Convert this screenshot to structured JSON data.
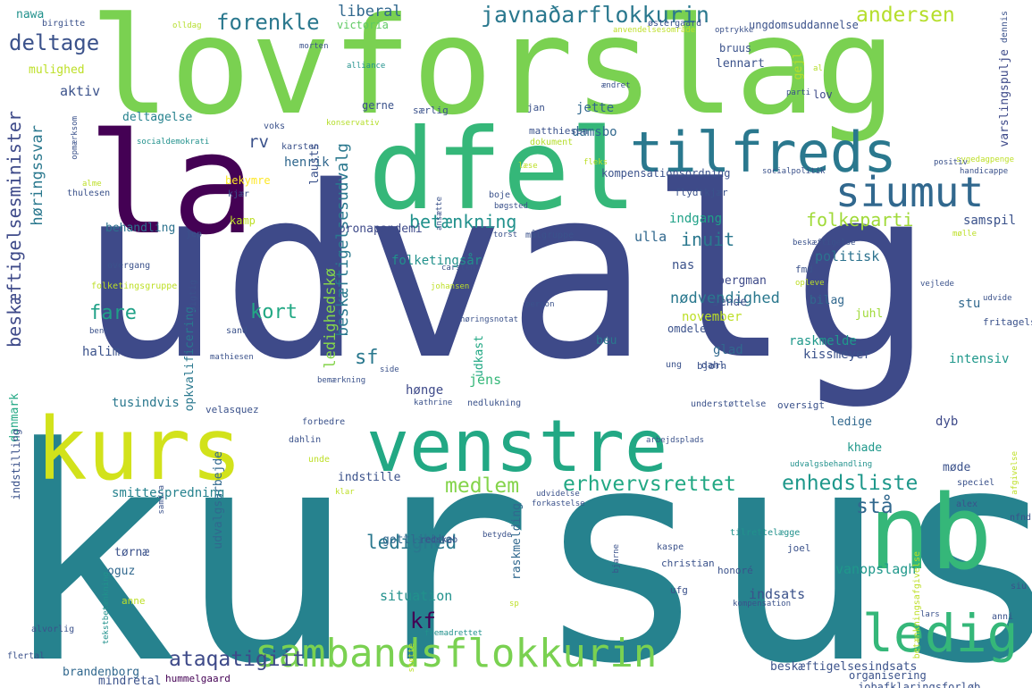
{
  "words": [
    {
      "text": "udvalg",
      "color": "#3e4a89"
    },
    {
      "text": "kursus",
      "color": "#26828e"
    },
    {
      "text": "lovforslag",
      "color": "#7ad151"
    },
    {
      "text": "dfel",
      "color": "#35b779"
    },
    {
      "text": "la",
      "color": "#440154"
    },
    {
      "text": "kurs",
      "color": "#d2e21b"
    },
    {
      "text": "venstre",
      "color": "#22a884"
    },
    {
      "text": "nb",
      "color": "#35b779"
    },
    {
      "text": "tilfreds",
      "color": "#2a788e"
    },
    {
      "text": "siumut",
      "color": "#31688e"
    },
    {
      "text": "ledig",
      "color": "#35b779"
    },
    {
      "text": "sambandsflokkurin",
      "color": "#7ad151"
    },
    {
      "text": "javnaðarflokkurin",
      "color": "#2a788e"
    },
    {
      "text": "forenkle",
      "color": "#2a788e"
    },
    {
      "text": "deltage",
      "color": "#3b528b"
    },
    {
      "text": "andersen",
      "color": "#b5de2b"
    },
    {
      "text": "liberal",
      "color": "#31688e"
    },
    {
      "text": "victoria",
      "color": "#5ec962"
    },
    {
      "text": "nawa",
      "color": "#21918c"
    },
    {
      "text": "mulighed",
      "color": "#bddf26"
    },
    {
      "text": "aktiv",
      "color": "#3b528b"
    },
    {
      "text": "beskæftigelsesminister",
      "color": "#3e4a89"
    },
    {
      "text": "høringssvar",
      "color": "#2a788e"
    },
    {
      "text": "beskæftigelsesudvalg",
      "color": "#2a788e"
    },
    {
      "text": "rv",
      "color": "#3b528b"
    },
    {
      "text": "henrik",
      "color": "#31688e"
    },
    {
      "text": "lausts",
      "color": "#3b528b"
    },
    {
      "text": "bekymre",
      "color": "#fde725"
    },
    {
      "text": "kamp",
      "color": "#bddf26"
    },
    {
      "text": "behandling",
      "color": "#2c728e"
    },
    {
      "text": "betænkning",
      "color": "#21918c"
    },
    {
      "text": "folkeparti",
      "color": "#a0da39"
    },
    {
      "text": "inuit",
      "color": "#2a788e"
    },
    {
      "text": "nas",
      "color": "#3b528b"
    },
    {
      "text": "ledighedskø",
      "color": "#84d44b"
    },
    {
      "text": "kort",
      "color": "#22a884"
    },
    {
      "text": "fare",
      "color": "#1fa187"
    },
    {
      "text": "sf",
      "color": "#2a788e"
    },
    {
      "text": "medlem",
      "color": "#84d44b"
    },
    {
      "text": "erhvervsrettet",
      "color": "#22a884"
    },
    {
      "text": "enhedsliste",
      "color": "#1f988b"
    },
    {
      "text": "stå",
      "color": "#31688e"
    },
    {
      "text": "ledighed",
      "color": "#2a788e"
    },
    {
      "text": "kf",
      "color": "#440154"
    },
    {
      "text": "ataqatigiit",
      "color": "#3e4a89"
    },
    {
      "text": "deltagelse",
      "color": "#26828e"
    },
    {
      "text": "jette",
      "color": "#31688e"
    },
    {
      "text": "damsbo",
      "color": "#31688e"
    },
    {
      "text": "gerne",
      "color": "#3b528b"
    },
    {
      "text": "gejl",
      "color": "#b5de2b"
    },
    {
      "text": "lov",
      "color": "#3e4a89"
    },
    {
      "text": "varslingspulje",
      "color": "#3e4a89"
    },
    {
      "text": "samspil",
      "color": "#3b528b"
    },
    {
      "text": "indgang",
      "color": "#1fa187"
    },
    {
      "text": "coronapandemi",
      "color": "#3e4a89"
    },
    {
      "text": "ulla",
      "color": "#31688e"
    },
    {
      "text": "politisk",
      "color": "#2c728e"
    },
    {
      "text": "bergman",
      "color": "#3e4a89"
    },
    {
      "text": "nødvendighed",
      "color": "#2a788e"
    },
    {
      "text": "sende",
      "color": "#3b528b"
    },
    {
      "text": "november",
      "color": "#bddf26"
    },
    {
      "text": "juhl",
      "color": "#a0da39"
    },
    {
      "text": "bilag",
      "color": "#31688e"
    },
    {
      "text": "stu",
      "color": "#31688e"
    },
    {
      "text": "raskmelde",
      "color": "#1f988b"
    },
    {
      "text": "kissmeyer",
      "color": "#3b528b"
    },
    {
      "text": "intensiv",
      "color": "#1f988b"
    },
    {
      "text": "glad",
      "color": "#31688e"
    },
    {
      "text": "beu",
      "color": "#2a788e"
    },
    {
      "text": "halim",
      "color": "#3b528b"
    },
    {
      "text": "opkvalificering",
      "color": "#2a788e"
    },
    {
      "text": "udkast",
      "color": "#22a884"
    },
    {
      "text": "jens",
      "color": "#35b779"
    },
    {
      "text": "hønge",
      "color": "#3e4a89"
    },
    {
      "text": "tusindvis",
      "color": "#2a788e"
    },
    {
      "text": "danmark",
      "color": "#22a884"
    },
    {
      "text": "indstilling",
      "color": "#3b528b"
    },
    {
      "text": "udvalgsarbejde",
      "color": "#31688e"
    },
    {
      "text": "indstille",
      "color": "#3b528b"
    },
    {
      "text": "smittespredning",
      "color": "#26828e"
    },
    {
      "text": "ledige",
      "color": "#31688e"
    },
    {
      "text": "dyb",
      "color": "#3e4a89"
    },
    {
      "text": "khade",
      "color": "#1f988b"
    },
    {
      "text": "møde",
      "color": "#3b528b"
    },
    {
      "text": "tørnæ",
      "color": "#3b528b"
    },
    {
      "text": "oguz",
      "color": "#31688e"
    },
    {
      "text": "gottliebbe",
      "color": "#31688e"
    },
    {
      "text": "raskmelding",
      "color": "#31688e"
    },
    {
      "text": "situation",
      "color": "#21918c"
    },
    {
      "text": "indsats",
      "color": "#3b528b"
    },
    {
      "text": "vanopslagh",
      "color": "#1f988b"
    },
    {
      "text": "beskæftigelsesindsats",
      "color": "#3b528b"
    },
    {
      "text": "brandenborg",
      "color": "#31688e"
    },
    {
      "text": "mindretal",
      "color": "#3b528b"
    },
    {
      "text": "hummelgaard",
      "color": "#440154"
    },
    {
      "text": "organisering",
      "color": "#3b528b"
    },
    {
      "text": "jobafklaringsforløb",
      "color": "#3b528b"
    },
    {
      "text": "flertal",
      "color": "#3b528b"
    },
    {
      "text": "alvorlig",
      "color": "#3b528b"
    },
    {
      "text": "birgitte",
      "color": "#3b528b"
    },
    {
      "text": "olldag",
      "color": "#b5de2b"
    },
    {
      "text": "østergaard",
      "color": "#3b528b"
    },
    {
      "text": "anvendelsesområde",
      "color": "#bddf26"
    },
    {
      "text": "optrykke",
      "color": "#3b528b"
    },
    {
      "text": "ungdomsuddannelse",
      "color": "#3b528b"
    },
    {
      "text": "dennis",
      "color": "#3b528b"
    },
    {
      "text": "morten",
      "color": "#3b528b"
    },
    {
      "text": "alliance",
      "color": "#21918c"
    },
    {
      "text": "bruus",
      "color": "#3b528b"
    },
    {
      "text": "lennart",
      "color": "#3b528b"
    },
    {
      "text": "ændret",
      "color": "#3b528b"
    },
    {
      "text": "al",
      "color": "#b5de2b"
    },
    {
      "text": "parti",
      "color": "#3b528b"
    },
    {
      "text": "konservativ",
      "color": "#b5de2b"
    },
    {
      "text": "særlig",
      "color": "#3b528b"
    },
    {
      "text": "jan",
      "color": "#3b528b"
    },
    {
      "text": "voks",
      "color": "#3b528b"
    },
    {
      "text": "opmærksom",
      "color": "#3b528b"
    },
    {
      "text": "socialdemokrati",
      "color": "#21918c"
    },
    {
      "text": "karsten",
      "color": "#3b528b"
    },
    {
      "text": "matthiesen",
      "color": "#3b528b"
    },
    {
      "text": "dokument",
      "color": "#b5de2b"
    },
    {
      "text": "kompensationsordning",
      "color": "#3b528b"
    },
    {
      "text": "socialpolitik",
      "color": "#3b528b"
    },
    {
      "text": "sygedagpenge",
      "color": "#bddf26"
    },
    {
      "text": "handicappe",
      "color": "#3b528b"
    },
    {
      "text": "positiv",
      "color": "#3b528b"
    },
    {
      "text": "læse",
      "color": "#bddf26"
    },
    {
      "text": "fleks",
      "color": "#bddf26"
    },
    {
      "text": "alme",
      "color": "#bddf26"
    },
    {
      "text": "thulesen",
      "color": "#3b528b"
    },
    {
      "text": "kjær",
      "color": "#3b528b"
    },
    {
      "text": "boje",
      "color": "#3b528b"
    },
    {
      "text": "ansætte",
      "color": "#3b528b"
    },
    {
      "text": "bøgsted",
      "color": "#3b528b"
    },
    {
      "text": "flydtkjær",
      "color": "#3b528b"
    },
    {
      "text": "jep",
      "color": "#3b528b"
    },
    {
      "text": "torst",
      "color": "#3b528b"
    },
    {
      "text": "målgruppe",
      "color": "#3b528b"
    },
    {
      "text": "beskæftigelse",
      "color": "#3b528b"
    },
    {
      "text": "mølle",
      "color": "#bddf26"
    },
    {
      "text": "overgang",
      "color": "#3b528b"
    },
    {
      "text": "carsten",
      "color": "#3b528b"
    },
    {
      "text": "folketingsår",
      "color": "#21918c"
    },
    {
      "text": "fmd",
      "color": "#3b528b"
    },
    {
      "text": "udvide",
      "color": "#3b528b"
    },
    {
      "text": "opleve",
      "color": "#bddf26"
    },
    {
      "text": "folketingsgruppe",
      "color": "#bddf26"
    },
    {
      "text": "vigtig",
      "color": "#3b528b"
    },
    {
      "text": "johansen",
      "color": "#bddf26"
    },
    {
      "text": "person",
      "color": "#3b528b"
    },
    {
      "text": "vejlede",
      "color": "#3b528b"
    },
    {
      "text": "høringsnotat",
      "color": "#3b528b"
    },
    {
      "text": "omdele",
      "color": "#3b528b"
    },
    {
      "text": "bent",
      "color": "#3b528b"
    },
    {
      "text": "sand",
      "color": "#3b528b"
    },
    {
      "text": "fritagelse",
      "color": "#3b528b"
    },
    {
      "text": "mathiesen",
      "color": "#3b528b"
    },
    {
      "text": "ung",
      "color": "#3b528b"
    },
    {
      "text": "bjørn",
      "color": "#3b528b"
    },
    {
      "text": "dahl",
      "color": "#3b528b"
    },
    {
      "text": "side",
      "color": "#3b528b"
    },
    {
      "text": "bemærkning",
      "color": "#3b528b"
    },
    {
      "text": "kathrine",
      "color": "#3b528b"
    },
    {
      "text": "nedlukning",
      "color": "#3b528b"
    },
    {
      "text": "velasquez",
      "color": "#3b528b"
    },
    {
      "text": "understøttelse",
      "color": "#3b528b"
    },
    {
      "text": "oversigt",
      "color": "#3b528b"
    },
    {
      "text": "forbedre",
      "color": "#3b528b"
    },
    {
      "text": "dahlin",
      "color": "#3b528b"
    },
    {
      "text": "unde",
      "color": "#bddf26"
    },
    {
      "text": "arbejdsplads",
      "color": "#3b528b"
    },
    {
      "text": "udvalgsbehandling",
      "color": "#21918c"
    },
    {
      "text": "afgivelse",
      "color": "#bddf26"
    },
    {
      "text": "samira",
      "color": "#3b528b"
    },
    {
      "text": "klar",
      "color": "#bddf26"
    },
    {
      "text": "udvidelse",
      "color": "#3b528b"
    },
    {
      "text": "forkastelse",
      "color": "#3b528b"
    },
    {
      "text": "speciel",
      "color": "#3b528b"
    },
    {
      "text": "alex",
      "color": "#3b528b"
    },
    {
      "text": "nfnd",
      "color": "#3b528b"
    },
    {
      "text": "tilrettelægge",
      "color": "#21918c"
    },
    {
      "text": "betyde",
      "color": "#3b528b"
    },
    {
      "text": "redskab",
      "color": "#3b528b"
    },
    {
      "text": "kaspe",
      "color": "#3b528b"
    },
    {
      "text": "christian",
      "color": "#3b528b"
    },
    {
      "text": "joel",
      "color": "#3b528b"
    },
    {
      "text": "betænkningsafgivelse",
      "color": "#bddf26"
    },
    {
      "text": "tekstbetænkning",
      "color": "#21918c"
    },
    {
      "text": "bjarne",
      "color": "#3b528b"
    },
    {
      "text": "honoré",
      "color": "#3b528b"
    },
    {
      "text": "ufg",
      "color": "#3b528b"
    },
    {
      "text": "siu",
      "color": "#3b528b"
    },
    {
      "text": "anne",
      "color": "#bddf26"
    },
    {
      "text": "sp",
      "color": "#bddf26"
    },
    {
      "text": "kompensation",
      "color": "#3b528b"
    },
    {
      "text": "lars",
      "color": "#3b528b"
    },
    {
      "text": "anni",
      "color": "#3b528b"
    },
    {
      "text": "støtte",
      "color": "#bddf26"
    },
    {
      "text": "fremadrettet",
      "color": "#21918c"
    }
  ]
}
